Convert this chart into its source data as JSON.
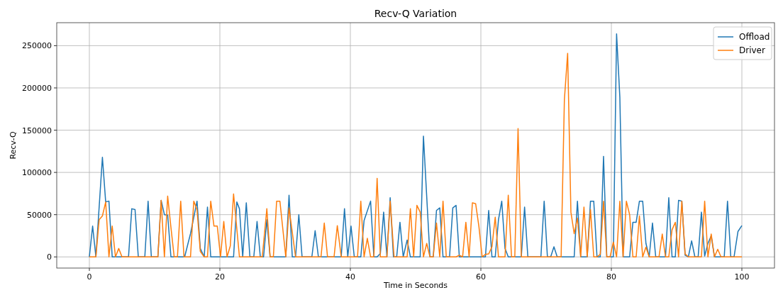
{
  "chart_data": {
    "type": "line",
    "title": "Recv-Q Variation",
    "xlabel": "Time in Seconds",
    "ylabel": "Recv-Q",
    "xlim": [
      -5,
      105
    ],
    "xticks": [
      0,
      20,
      40,
      60,
      80,
      100
    ],
    "ylim": [
      -13200,
      277200
    ],
    "yticks": [
      0,
      50000,
      100000,
      150000,
      200000,
      250000
    ],
    "grid": true,
    "legend": "top right",
    "series": [
      {
        "name": "Offload",
        "color": "#1f77b4",
        "x": [
          0,
          0.5,
          1,
          2,
          2.5,
          3,
          3.5,
          6,
          6.5,
          7,
          7.5,
          8.5,
          9,
          9.5,
          10.5,
          11,
          11.5,
          12,
          12.5,
          14.6,
          15.5,
          16.5,
          17,
          17.6,
          18.1,
          18.6,
          22.1,
          22.6,
          23,
          23.5,
          24.05,
          24.6,
          25.2,
          25.7,
          26.2,
          26.7,
          27.2,
          27.7,
          30.1,
          30.6,
          31.1,
          31.6,
          32.1,
          32.6,
          34.1,
          34.6,
          35.1,
          38.6,
          39.1,
          39.6,
          40.1,
          40.6,
          41.6,
          42.1,
          43.1,
          43.6,
          44.1,
          44.6,
          45.1,
          45.6,
          46.1,
          46.6,
          47.1,
          47.6,
          48.1,
          48.7,
          49.2,
          50.7,
          51.2,
          52.2,
          52.7,
          53.2,
          53.7,
          54.2,
          55.2,
          55.7,
          56.2,
          56.7,
          60.7,
          61.2,
          61.7,
          62.2,
          62.7,
          63.2,
          63.7,
          64.2,
          66.2,
          66.7,
          67.2,
          69.2,
          69.7,
          70.2,
          70.7,
          71.2,
          71.7,
          74.3,
          74.8,
          75.3,
          76.3,
          76.8,
          77.3,
          77.8,
          78.3,
          78.8,
          79.3,
          80.3,
          80.8,
          81.3,
          81.8,
          82.8,
          83.3,
          83.8,
          84.3,
          84.8,
          85.3,
          85.8,
          86.3,
          86.8,
          88.3,
          88.8,
          89.3,
          89.8,
          90.3,
          90.8,
          91.3,
          91.8,
          92.3,
          92.8,
          93.3,
          93.8,
          94.3,
          94.8,
          95.3,
          95.8,
          97.3,
          97.8,
          98.3,
          98.8,
          99.4,
          100
        ],
        "values": [
          0,
          36500,
          0,
          118000,
          65000,
          66000,
          0,
          0,
          57000,
          56000,
          0,
          0,
          66000,
          0,
          0,
          67000,
          50000,
          49500,
          0,
          0,
          27500,
          66000,
          10000,
          0,
          59000,
          0,
          0,
          65000,
          57000,
          0,
          64000,
          0,
          0,
          42000,
          0,
          0,
          44000,
          0,
          0,
          73000,
          0,
          0,
          50000,
          0,
          0,
          31000,
          0,
          0,
          57000,
          0,
          36500,
          0,
          0,
          43000,
          66000,
          0,
          0,
          4000,
          53000,
          0,
          70000,
          0,
          0,
          41000,
          0,
          20000,
          0,
          0,
          143000,
          0,
          0,
          55000,
          58000,
          0,
          0,
          58000,
          61000,
          0,
          0,
          55000,
          0,
          0,
          44000,
          66000,
          10000,
          0,
          0,
          59000,
          0,
          0,
          66000,
          0,
          0,
          12000,
          0,
          0,
          66000,
          0,
          0,
          66000,
          66000,
          0,
          0,
          119000,
          0,
          0,
          264000,
          189000,
          0,
          0,
          41000,
          41000,
          66000,
          66000,
          16000,
          0,
          40000,
          0,
          0,
          70000,
          0,
          0,
          67000,
          66000,
          2000,
          0,
          19000,
          0,
          0,
          53000,
          1000,
          16000,
          25000,
          0,
          0,
          66000,
          0,
          0,
          30000,
          37000
        ]
      },
      {
        "name": "Driver",
        "color": "#ff7f0e",
        "x": [
          0,
          1,
          1.5,
          2,
          2.5,
          3,
          3.5,
          4,
          4.5,
          5,
          10.5,
          11,
          11.5,
          12,
          12.5,
          13,
          13.5,
          14,
          14.5,
          15.5,
          16,
          16.5,
          17,
          17.6,
          18.1,
          18.6,
          19.1,
          19.6,
          20.1,
          20.6,
          21.1,
          21.6,
          22.1,
          23,
          26.5,
          27.2,
          27.7,
          28.2,
          28.7,
          29.2,
          30.1,
          30.6,
          31.6,
          35.5,
          36,
          36.5,
          37.5,
          38,
          38.6,
          41.1,
          41.6,
          42.1,
          42.6,
          43.1,
          43.6,
          44.1,
          44.6,
          45.6,
          46.1,
          46.7,
          48.7,
          49.2,
          49.7,
          50.2,
          50.7,
          51.2,
          51.7,
          52.2,
          52.7,
          53.2,
          53.7,
          54.2,
          54.7,
          56.2,
          56.7,
          57.2,
          57.7,
          58.2,
          58.7,
          59.2,
          59.7,
          60.2,
          60.7,
          61.2,
          61.7,
          62.2,
          62.7,
          63.7,
          64.2,
          64.7,
          65.2,
          65.7,
          66.2,
          72.3,
          72.8,
          73.3,
          73.8,
          74.3,
          74.8,
          75.3,
          75.8,
          76.3,
          76.8,
          77.3,
          77.8,
          78.3,
          78.8,
          79.3,
          79.8,
          80.3,
          80.8,
          81.3,
          81.8,
          82.3,
          82.8,
          83.3,
          83.8,
          84.3,
          84.8,
          85.3,
          85.8,
          87.3,
          87.8,
          88.3,
          88.8,
          89.3,
          89.8,
          90.3,
          90.8,
          91.3,
          91.8,
          93.8,
          94.3,
          94.8,
          95.3,
          95.8,
          96.3,
          96.8,
          100
        ],
        "values": [
          0,
          0,
          44000,
          48500,
          65000,
          0,
          36500,
          0,
          10000,
          0,
          0,
          67000,
          0,
          72000,
          35000,
          0,
          0,
          66000,
          0,
          0,
          66000,
          56000,
          6500,
          0,
          0,
          66000,
          36500,
          36500,
          0,
          42000,
          0,
          13000,
          74500,
          0,
          0,
          57000,
          0,
          0,
          66000,
          66000,
          0,
          58000,
          0,
          0,
          40000,
          0,
          0,
          37000,
          0,
          0,
          66000,
          0,
          22000,
          0,
          0,
          93000,
          0,
          0,
          66000,
          0,
          0,
          57000,
          0,
          61000,
          53000,
          0,
          16000,
          0,
          0,
          40000,
          0,
          66000,
          0,
          0,
          2000,
          0,
          41000,
          0,
          64000,
          63000,
          36000,
          0,
          3000,
          3500,
          12000,
          47000,
          0,
          0,
          73000,
          0,
          0,
          152000,
          0,
          0,
          186000,
          241000,
          53000,
          27500,
          46000,
          0,
          59000,
          0,
          56000,
          0,
          0,
          3000,
          66000,
          0,
          0,
          17500,
          0,
          66000,
          0,
          66000,
          50000,
          0,
          0,
          48500,
          0,
          11500,
          0,
          0,
          27000,
          0,
          0,
          32000,
          41000,
          0,
          66000,
          3500,
          0,
          0,
          66000,
          0,
          27000,
          0,
          9000,
          0,
          0
        ]
      }
    ]
  }
}
